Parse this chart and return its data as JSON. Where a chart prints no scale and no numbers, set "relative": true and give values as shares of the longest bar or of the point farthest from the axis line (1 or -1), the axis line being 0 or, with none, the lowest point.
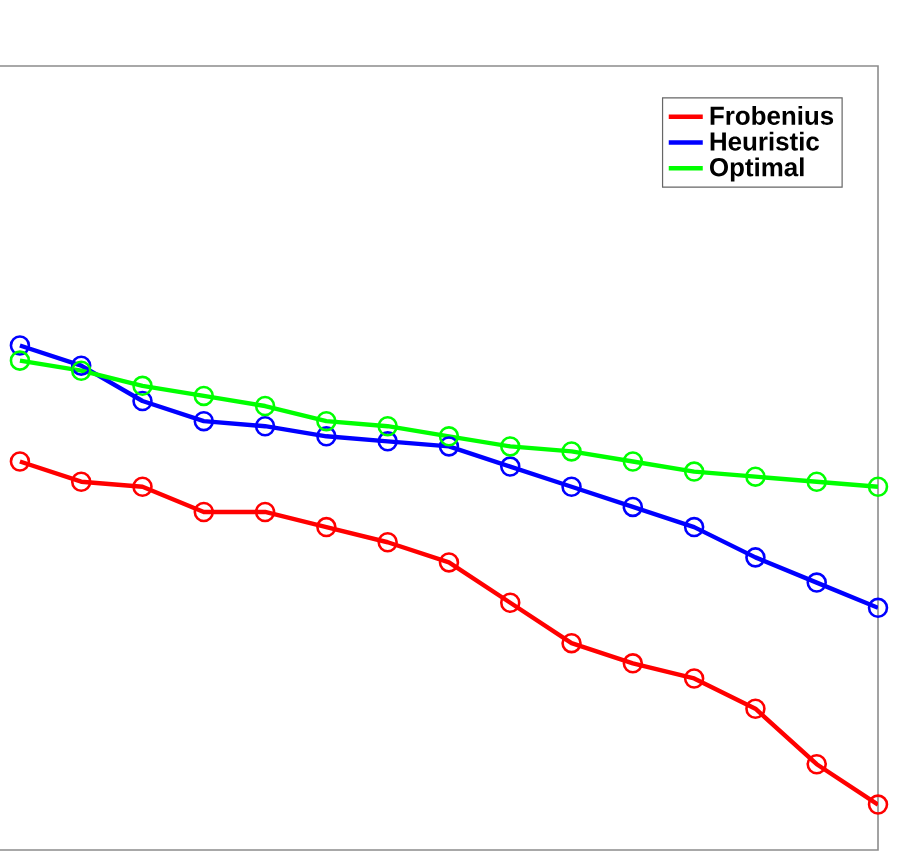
{
  "chart_data": {
    "type": "line",
    "relative": true,
    "categories": [
      null,
      null,
      null,
      null,
      null,
      null,
      null,
      null,
      null,
      null,
      null,
      null,
      null,
      null,
      null
    ],
    "series": [
      {
        "name": "Frobenius",
        "color": "#ff0000",
        "values": [
          0.77,
          0.73,
          0.72,
          0.67,
          0.67,
          0.64,
          0.61,
          0.57,
          0.49,
          0.41,
          0.37,
          0.34,
          0.28,
          0.17,
          0.09
        ]
      },
      {
        "name": "Heuristic",
        "color": "#0000ff",
        "values": [
          1,
          0.96,
          0.89,
          0.85,
          0.84,
          0.82,
          0.81,
          0.8,
          0.76,
          0.72,
          0.68,
          0.64,
          0.58,
          0.53,
          0.48
        ]
      },
      {
        "name": "Optimal",
        "color": "#00ff00",
        "values": [
          0.97,
          0.95,
          0.92,
          0.9,
          0.88,
          0.85,
          0.84,
          0.82,
          0.8,
          0.79,
          0.77,
          0.75,
          0.74,
          0.73,
          0.72
        ]
      }
    ],
    "marker": "circle",
    "line_style": "solid",
    "legend": "top right"
  }
}
